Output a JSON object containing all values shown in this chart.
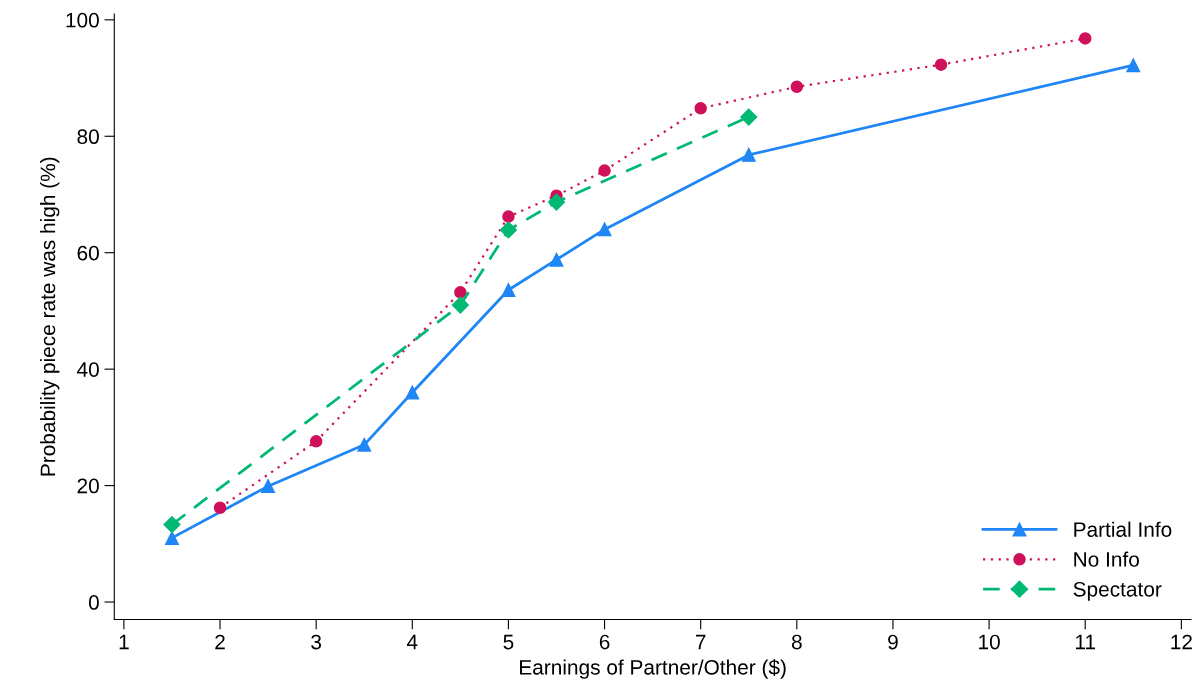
{
  "chart_data": {
    "type": "line",
    "xlabel": "Earnings of Partner/Other ($)",
    "ylabel": "Probability piece rate was high (%)",
    "xlim": [
      0.9,
      12.1
    ],
    "xticks": [
      1,
      2,
      3,
      4,
      5,
      6,
      7,
      8,
      9,
      10,
      11,
      12
    ],
    "ylim": [
      -3,
      101
    ],
    "yticks": [
      0,
      20,
      40,
      60,
      80,
      100
    ],
    "grid": false,
    "legend": "bottom right",
    "series": [
      {
        "name": "Partial Info",
        "color": "#1f86f5",
        "marker": "triangle",
        "line_style": "solid",
        "x": [
          1.5,
          2.5,
          3.5,
          4,
          5,
          5.5,
          6,
          7.5,
          11.5
        ],
        "values": [
          11.0,
          19.9,
          27.0,
          36.0,
          53.6,
          58.8,
          64.0,
          76.8,
          92.2
        ]
      },
      {
        "name": "No Info",
        "color": "#d0105a",
        "marker": "circle",
        "line_style": "dotted",
        "x": [
          2,
          3,
          4.5,
          5,
          5.5,
          6,
          7,
          8,
          9.5,
          11
        ],
        "values": [
          16.2,
          27.6,
          53.2,
          66.2,
          69.8,
          74.1,
          84.8,
          88.5,
          92.3,
          96.8
        ]
      },
      {
        "name": "Spectator",
        "color": "#00b973",
        "marker": "diamond",
        "line_style": "dashed",
        "x": [
          1.5,
          4.5,
          5,
          5.5,
          7.5
        ],
        "values": [
          13.3,
          51.0,
          63.9,
          68.7,
          83.3
        ]
      }
    ]
  }
}
